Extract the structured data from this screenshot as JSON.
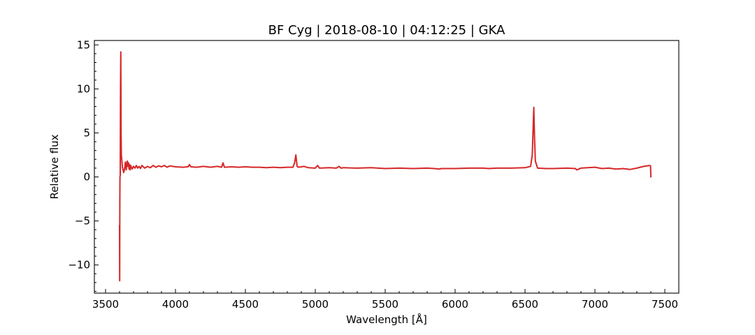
{
  "chart_data": {
    "type": "line",
    "title": "BF Cyg | 2018-08-10 | 04:12:25 | GKA",
    "xlabel": "Wavelength [Å]",
    "ylabel": "Relative flux",
    "xlim": [
      3420,
      7600
    ],
    "ylim": [
      -13.2,
      15.5
    ],
    "x_ticks": [
      3500,
      4000,
      4500,
      5000,
      5500,
      6000,
      6500,
      7000,
      7500
    ],
    "x_tick_labels": [
      "3500",
      "4000",
      "4500",
      "5000",
      "5500",
      "6000",
      "6500",
      "7000",
      "7500"
    ],
    "y_ticks": [
      -10,
      -5,
      0,
      5,
      10,
      15
    ],
    "y_tick_labels": [
      "−10",
      "−5",
      "0",
      "5",
      "10",
      "15"
    ],
    "x_minor_step": 100,
    "y_minor_step": 1,
    "grid": false,
    "ticks_direction": "in",
    "series": [
      {
        "color": "#d62728",
        "x": [
          3600,
          3601,
          3602,
          3603,
          3605,
          3607,
          3609,
          3611,
          3613,
          3616,
          3620,
          3625,
          3630,
          3636,
          3642,
          3648,
          3652,
          3656,
          3660,
          3664,
          3668,
          3672,
          3676,
          3680,
          3690,
          3700,
          3710,
          3720,
          3730,
          3740,
          3750,
          3760,
          3780,
          3800,
          3820,
          3840,
          3860,
          3880,
          3900,
          3920,
          3940,
          3960,
          3980,
          4000,
          4050,
          4090,
          4100,
          4110,
          4150,
          4200,
          4250,
          4300,
          4330,
          4340,
          4350,
          4400,
          4450,
          4500,
          4550,
          4600,
          4650,
          4700,
          4750,
          4800,
          4840,
          4852,
          4861,
          4870,
          4880,
          4920,
          4950,
          5000,
          5016,
          5030,
          5100,
          5150,
          5169,
          5185,
          5200,
          5300,
          5400,
          5500,
          5600,
          5700,
          5800,
          5850,
          5890,
          5900,
          6000,
          6100,
          6150,
          6200,
          6240,
          6300,
          6400,
          6500,
          6540,
          6552,
          6558,
          6563,
          6568,
          6574,
          6590,
          6650,
          6700,
          6800,
          6860,
          6870,
          6900,
          6950,
          7000,
          7050,
          7100,
          7150,
          7200,
          7250,
          7300,
          7350,
          7390,
          7398,
          7400
        ],
        "y": [
          -5.5,
          -11.8,
          -3,
          0,
          0.2,
          10,
          14.2,
          5,
          2.5,
          2,
          1.1,
          0.8,
          0.5,
          0.9,
          1.7,
          0.8,
          1.5,
          1.8,
          1.2,
          1.6,
          0.9,
          1.4,
          0.8,
          1.3,
          0.9,
          1.2,
          1.0,
          1.3,
          1.0,
          1.2,
          0.95,
          1.3,
          1.0,
          1.2,
          1.05,
          1.3,
          1.1,
          1.25,
          1.15,
          1.3,
          1.1,
          1.25,
          1.2,
          1.15,
          1.1,
          1.15,
          1.4,
          1.15,
          1.1,
          1.2,
          1.1,
          1.2,
          1.1,
          1.6,
          1.1,
          1.15,
          1.1,
          1.15,
          1.1,
          1.1,
          1.05,
          1.1,
          1.05,
          1.1,
          1.1,
          1.6,
          2.5,
          1.2,
          1.1,
          1.2,
          1.05,
          1.0,
          1.3,
          1.0,
          1.05,
          1.0,
          1.2,
          1.0,
          1.05,
          1.0,
          1.05,
          0.95,
          1.0,
          0.95,
          1.0,
          0.95,
          0.9,
          0.95,
          0.95,
          1.0,
          1.0,
          1.0,
          0.95,
          1.0,
          1.0,
          1.05,
          1.2,
          2.5,
          5.5,
          7.9,
          4.5,
          1.8,
          1.0,
          0.95,
          0.95,
          1.0,
          0.95,
          0.8,
          1.0,
          1.05,
          1.1,
          0.95,
          1.0,
          0.9,
          0.95,
          0.85,
          1.0,
          1.2,
          1.3,
          1.25,
          0
        ]
      }
    ]
  }
}
